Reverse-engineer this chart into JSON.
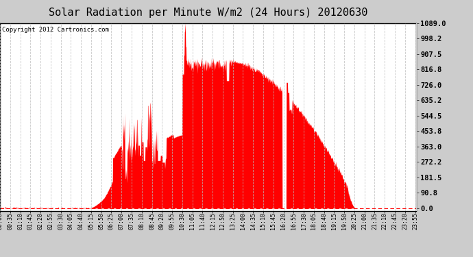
{
  "title": "Solar Radiation per Minute W/m2 (24 Hours) 20120630",
  "copyright_text": "Copyright 2012 Cartronics.com",
  "y_ticks": [
    0.0,
    90.8,
    181.5,
    272.2,
    363.0,
    453.8,
    544.5,
    635.2,
    726.0,
    816.8,
    907.5,
    998.2,
    1089.0
  ],
  "y_max": 1089.0,
  "y_min": 0.0,
  "fill_color": "#FF0000",
  "grid_color": "#BBBBBB",
  "background_color": "#FFFFFF",
  "outer_background": "#CCCCCC",
  "title_fontsize": 11,
  "copyright_fontsize": 6.5,
  "tick_fontsize": 6,
  "ytick_fontsize": 7.5
}
